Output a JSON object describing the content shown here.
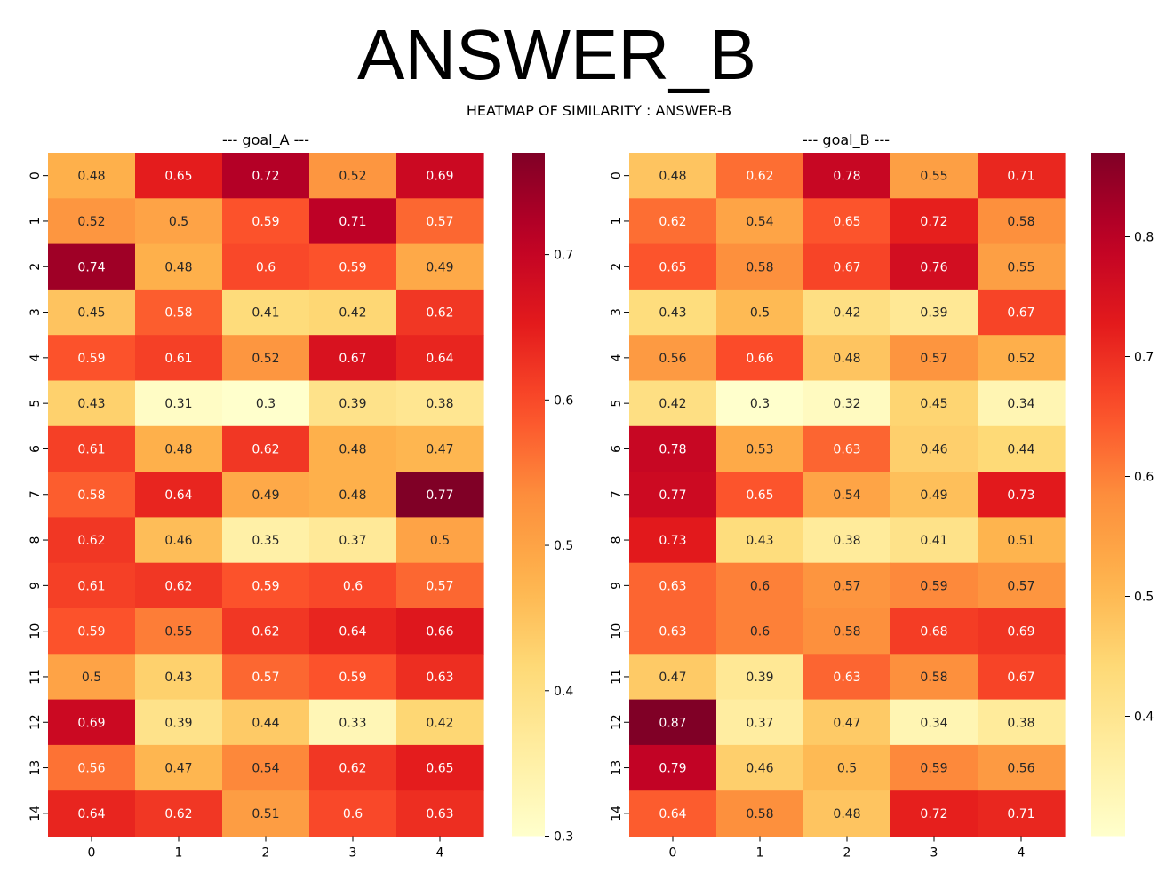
{
  "figure": {
    "suptitle": "ANSWER_B",
    "subtitle": "HEATMAP OF SIMILARITY : ANSWER-B"
  },
  "chart_data": [
    {
      "type": "heatmap",
      "title": "--- goal_A ---",
      "x_categories": [
        "0",
        "1",
        "2",
        "3",
        "4"
      ],
      "y_categories": [
        "0",
        "1",
        "2",
        "3",
        "4",
        "5",
        "6",
        "7",
        "8",
        "9",
        "10",
        "11",
        "12",
        "13",
        "14"
      ],
      "values": [
        [
          0.48,
          0.65,
          0.72,
          0.52,
          0.69
        ],
        [
          0.52,
          0.5,
          0.59,
          0.71,
          0.57
        ],
        [
          0.74,
          0.48,
          0.6,
          0.59,
          0.49
        ],
        [
          0.45,
          0.58,
          0.41,
          0.42,
          0.62
        ],
        [
          0.59,
          0.61,
          0.52,
          0.67,
          0.64
        ],
        [
          0.43,
          0.31,
          0.3,
          0.39,
          0.38
        ],
        [
          0.61,
          0.48,
          0.62,
          0.48,
          0.47
        ],
        [
          0.58,
          0.64,
          0.49,
          0.48,
          0.77
        ],
        [
          0.62,
          0.46,
          0.35,
          0.37,
          0.5
        ],
        [
          0.61,
          0.62,
          0.59,
          0.6,
          0.57
        ],
        [
          0.59,
          0.55,
          0.62,
          0.64,
          0.66
        ],
        [
          0.5,
          0.43,
          0.57,
          0.59,
          0.63
        ],
        [
          0.69,
          0.39,
          0.44,
          0.33,
          0.42
        ],
        [
          0.56,
          0.47,
          0.54,
          0.62,
          0.65
        ],
        [
          0.64,
          0.62,
          0.51,
          0.6,
          0.63
        ]
      ],
      "colormap": "YlOrRd",
      "color_range": [
        0.3,
        0.77
      ],
      "colorbar_ticks": [
        0.3,
        0.4,
        0.5,
        0.6,
        0.7
      ]
    },
    {
      "type": "heatmap",
      "title": "--- goal_B ---",
      "x_categories": [
        "0",
        "1",
        "2",
        "3",
        "4"
      ],
      "y_categories": [
        "0",
        "1",
        "2",
        "3",
        "4",
        "5",
        "6",
        "7",
        "8",
        "9",
        "10",
        "11",
        "12",
        "13",
        "14"
      ],
      "values": [
        [
          0.48,
          0.62,
          0.78,
          0.55,
          0.71
        ],
        [
          0.62,
          0.54,
          0.65,
          0.72,
          0.58
        ],
        [
          0.65,
          0.58,
          0.67,
          0.76,
          0.55
        ],
        [
          0.43,
          0.5,
          0.42,
          0.39,
          0.67
        ],
        [
          0.56,
          0.66,
          0.48,
          0.57,
          0.52
        ],
        [
          0.42,
          0.3,
          0.32,
          0.45,
          0.34
        ],
        [
          0.78,
          0.53,
          0.63,
          0.46,
          0.44
        ],
        [
          0.77,
          0.65,
          0.54,
          0.49,
          0.73
        ],
        [
          0.73,
          0.43,
          0.38,
          0.41,
          0.51
        ],
        [
          0.63,
          0.6,
          0.57,
          0.59,
          0.57
        ],
        [
          0.63,
          0.6,
          0.58,
          0.68,
          0.69
        ],
        [
          0.47,
          0.39,
          0.63,
          0.58,
          0.67
        ],
        [
          0.87,
          0.37,
          0.47,
          0.34,
          0.38
        ],
        [
          0.79,
          0.46,
          0.5,
          0.59,
          0.56
        ],
        [
          0.64,
          0.58,
          0.48,
          0.72,
          0.71
        ]
      ],
      "colormap": "YlOrRd",
      "color_range": [
        0.3,
        0.87
      ],
      "colorbar_ticks": [
        0.4,
        0.5,
        0.6,
        0.7,
        0.8
      ]
    }
  ]
}
